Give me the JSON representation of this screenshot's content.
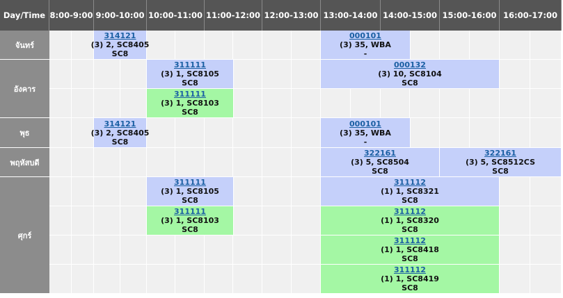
{
  "header": {
    "corner": "Day/Time",
    "slots": [
      "8:00-9:00",
      "9:00-10:00",
      "10:00-11:00",
      "11:00-12:00",
      "12:00-13:00",
      "13:00-14:00",
      "14:00-15:00",
      "15:00-16:00",
      "16:00-17:00"
    ]
  },
  "days": [
    {
      "label": "จันทร์",
      "rows": [
        [
          {
            "start": 1,
            "span": 1,
            "code": "314121",
            "detail": "(3) 2, SC8405",
            "room": "SC8",
            "color": "blue"
          },
          {
            "start": 5,
            "span": 1.5,
            "code": "000101",
            "detail": "(3) 35, WBA",
            "room": "-",
            "color": "blue"
          }
        ]
      ]
    },
    {
      "label": "อังคาร",
      "rows": [
        [
          {
            "start": 2,
            "span": 1.5,
            "code": "311111",
            "detail": "(3) 1, SC8105",
            "room": "SC8",
            "color": "blue"
          },
          {
            "start": 5,
            "span": 3,
            "code": "000132",
            "detail": "(3) 10, SC8104",
            "room": "SC8",
            "color": "blue"
          }
        ],
        [
          {
            "start": 2,
            "span": 1.5,
            "code": "311111",
            "detail": "(3) 1, SC8103",
            "room": "SC8",
            "color": "green"
          }
        ]
      ]
    },
    {
      "label": "พุธ",
      "rows": [
        [
          {
            "start": 1,
            "span": 1,
            "code": "314121",
            "detail": "(3) 2, SC8405",
            "room": "SC8",
            "color": "blue"
          },
          {
            "start": 5,
            "span": 1.5,
            "code": "000101",
            "detail": "(3) 35, WBA",
            "room": "-",
            "color": "blue"
          }
        ]
      ]
    },
    {
      "label": "พฤหัสบดี",
      "rows": [
        [
          {
            "start": 5,
            "span": 2,
            "code": "322161",
            "detail": "(3) 5, SC8504",
            "room": "SC8",
            "color": "blue"
          },
          {
            "start": 7,
            "span": 2,
            "code": "322161",
            "detail": "(3) 5, SC8512CS",
            "room": "SC8",
            "color": "blue"
          }
        ]
      ]
    },
    {
      "label": "ศุกร์",
      "rows": [
        [
          {
            "start": 2,
            "span": 1.5,
            "code": "311111",
            "detail": "(3) 1, SC8105",
            "room": "SC8",
            "color": "blue"
          },
          {
            "start": 5,
            "span": 3,
            "code": "311112",
            "detail": "(1) 1, SC8321",
            "room": "SC8",
            "color": "blue"
          }
        ],
        [
          {
            "start": 2,
            "span": 1.5,
            "code": "311111",
            "detail": "(3) 1, SC8103",
            "room": "SC8",
            "color": "green"
          },
          {
            "start": 5,
            "span": 3,
            "code": "311112",
            "detail": "(1) 1, SC8320",
            "room": "SC8",
            "color": "green"
          }
        ],
        [
          {
            "start": 5,
            "span": 3,
            "code": "311112",
            "detail": "(1) 1, SC8418",
            "room": "SC8",
            "color": "green"
          }
        ],
        [
          {
            "start": 5,
            "span": 3,
            "code": "311112",
            "detail": "(1) 1, SC8419",
            "room": "SC8",
            "color": "green"
          }
        ]
      ]
    }
  ],
  "colors": {
    "header_bg": "#555555",
    "day_bg": "#8c8c8c",
    "blue_course": "#c5d0fa",
    "green_course": "#a4f7a4",
    "link": "#1a5fa3"
  }
}
